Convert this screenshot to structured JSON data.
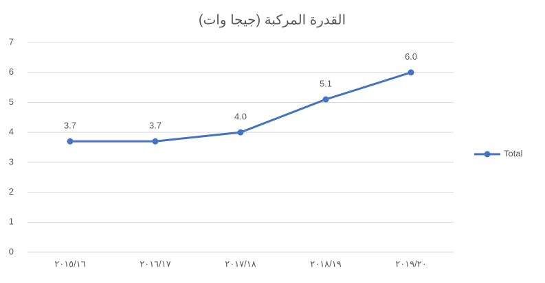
{
  "chart_data": {
    "type": "line",
    "title": "القدرة المركبة (جيجا وات)",
    "categories": [
      "٢٠١٥/١٦",
      "٢٠١٦/١٧",
      "٢٠١٧/١٨",
      "٢٠١٨/١٩",
      "٢٠١٩/٢٠"
    ],
    "series": [
      {
        "name": "Total",
        "color": "#4472c4",
        "values": [
          3.7,
          3.7,
          4.0,
          5.1,
          6.0
        ],
        "value_labels": [
          "3.7",
          "3.7",
          "4.0",
          "5.1",
          "6.0"
        ]
      }
    ],
    "ylim": [
      0,
      7
    ],
    "yticks": [
      0,
      1,
      2,
      3,
      4,
      5,
      6,
      7
    ],
    "grid": true,
    "legend": "right"
  }
}
